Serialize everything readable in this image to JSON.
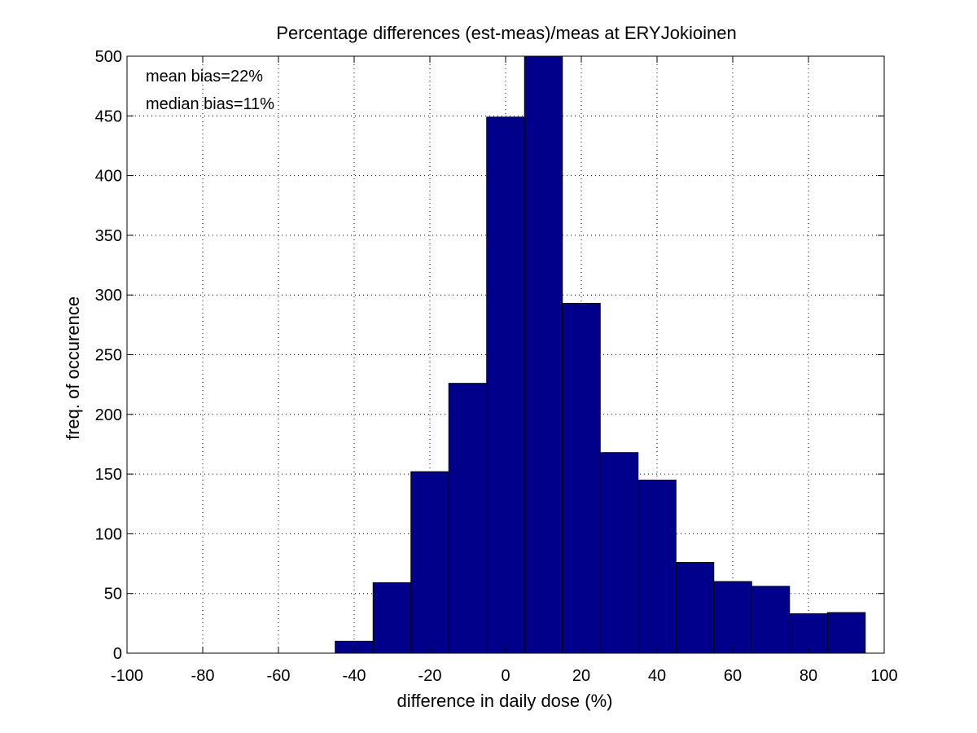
{
  "chart_data": {
    "type": "bar",
    "title": "Percentage differences (est-meas)/meas at ERYJokioinen",
    "xlabel": "difference in daily dose (%)",
    "ylabel": "freq. of occurence",
    "xlim": [
      -100,
      100
    ],
    "ylim": [
      0,
      500
    ],
    "xticks": [
      -100,
      -80,
      -60,
      -40,
      -20,
      0,
      20,
      40,
      60,
      80,
      100
    ],
    "yticks": [
      0,
      50,
      100,
      150,
      200,
      250,
      300,
      350,
      400,
      450,
      500
    ],
    "grid": true,
    "bar_color": "#00008b",
    "bins": [
      {
        "x0": -45,
        "x1": -35,
        "value": 10
      },
      {
        "x0": -35,
        "x1": -25,
        "value": 59
      },
      {
        "x0": -25,
        "x1": -15,
        "value": 152
      },
      {
        "x0": -15,
        "x1": -5,
        "value": 226
      },
      {
        "x0": -5,
        "x1": 5,
        "value": 449
      },
      {
        "x0": 5,
        "x1": 15,
        "value": 500
      },
      {
        "x0": 15,
        "x1": 25,
        "value": 293
      },
      {
        "x0": 25,
        "x1": 35,
        "value": 168
      },
      {
        "x0": 35,
        "x1": 45,
        "value": 145
      },
      {
        "x0": 45,
        "x1": 55,
        "value": 76
      },
      {
        "x0": 55,
        "x1": 65,
        "value": 60
      },
      {
        "x0": 65,
        "x1": 75,
        "value": 56
      },
      {
        "x0": 75,
        "x1": 85,
        "value": 33
      },
      {
        "x0": 85,
        "x1": 95,
        "value": 34
      }
    ],
    "annotations": [
      "mean bias=22%",
      "median bias=11%"
    ]
  }
}
